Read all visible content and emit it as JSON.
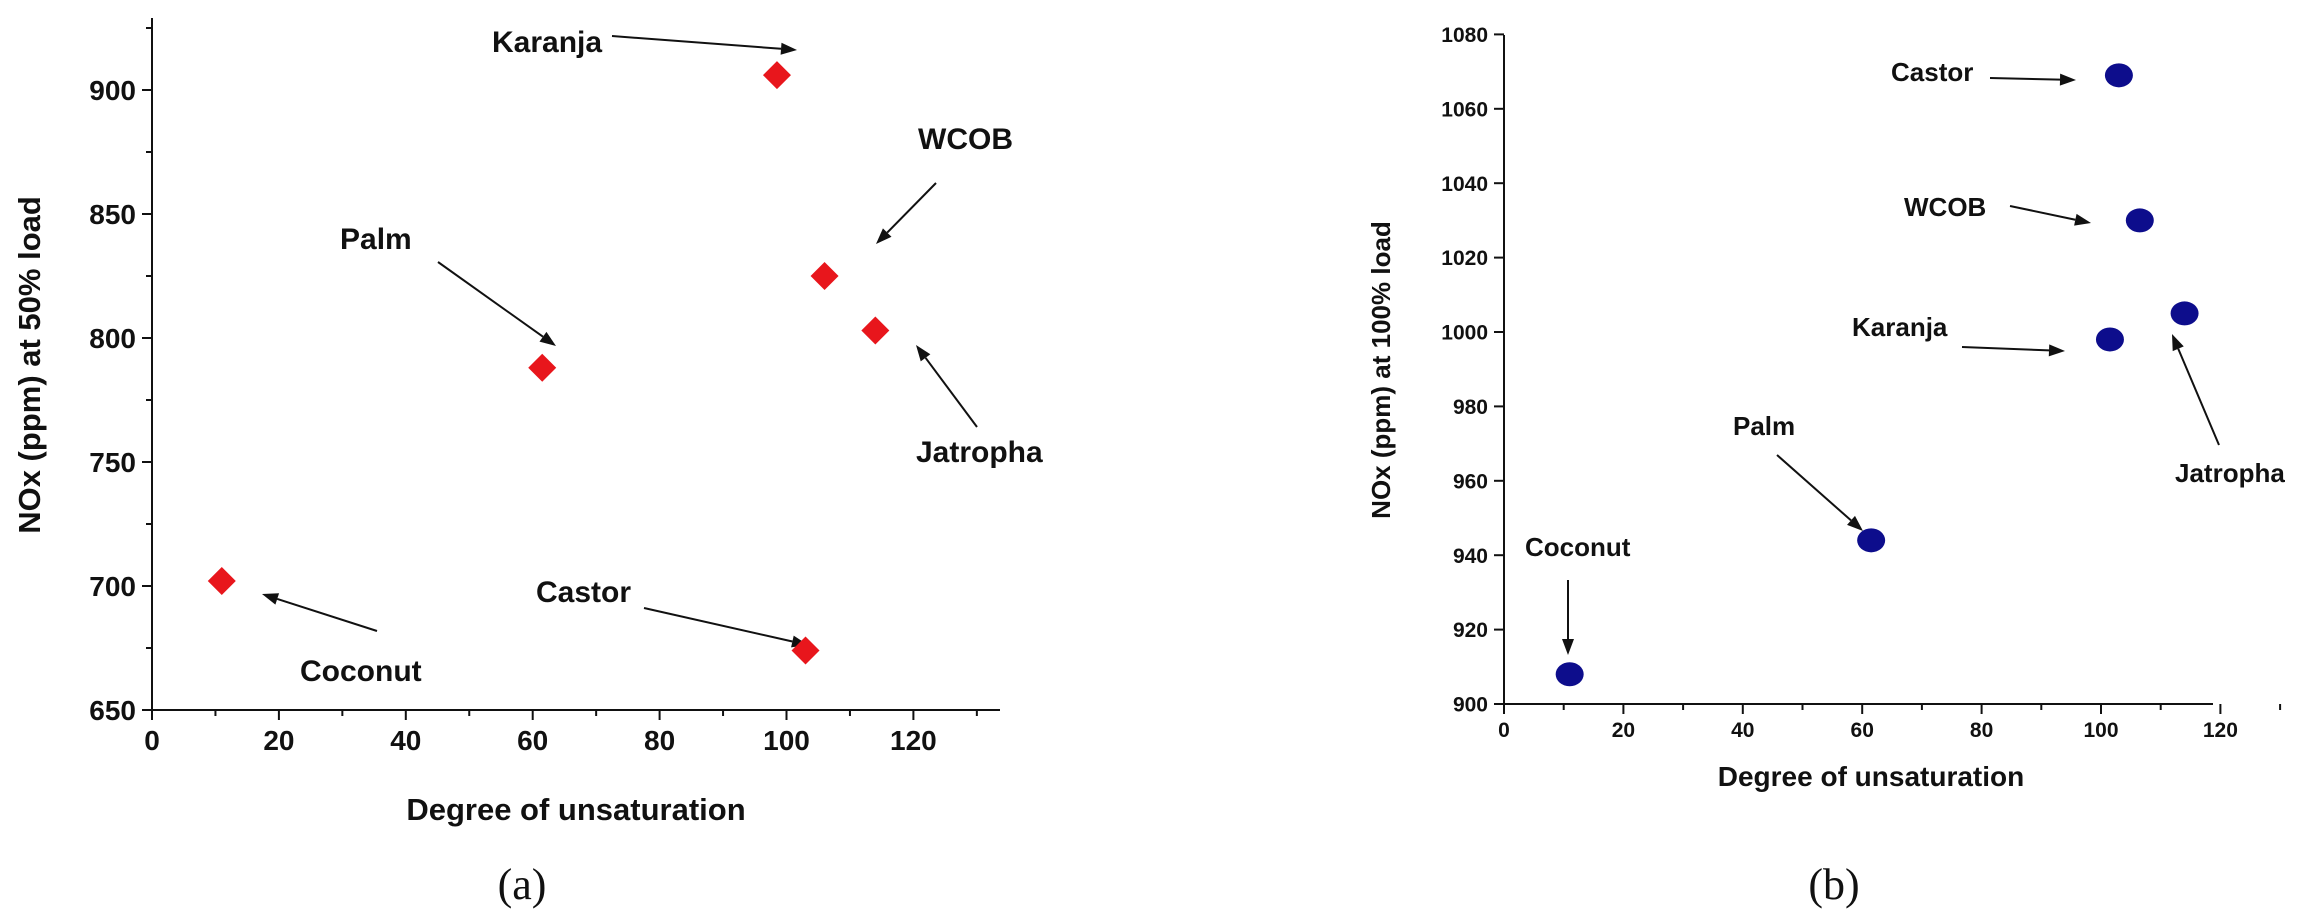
{
  "chart_data": [
    {
      "type": "scatter",
      "panel_label": "(a)",
      "xlabel": "Degree of unsaturation",
      "ylabel": "NOx (ppm) at 50% load",
      "xlim": [
        0,
        130
      ],
      "ylim": [
        650,
        925
      ],
      "xticks": [
        0,
        20,
        40,
        60,
        80,
        100,
        120
      ],
      "yticks": [
        650,
        700,
        750,
        800,
        850,
        900
      ],
      "marker": "diamond",
      "marker_color": "#e8161c",
      "legend": "none",
      "points": [
        {
          "label": "Coconut",
          "x": 11,
          "y": 702
        },
        {
          "label": "Palm",
          "x": 61.5,
          "y": 788
        },
        {
          "label": "Karanja",
          "x": 98.5,
          "y": 906
        },
        {
          "label": "Castor",
          "x": 103,
          "y": 674
        },
        {
          "label": "WCOB",
          "x": 106,
          "y": 825
        },
        {
          "label": "Jatropha",
          "x": 114,
          "y": 803
        }
      ]
    },
    {
      "type": "scatter",
      "panel_label": "(b)",
      "xlabel": "Degree of unsaturation",
      "ylabel": "NOx (ppm) at 100% load",
      "xlim": [
        0,
        130
      ],
      "ylim": [
        900,
        1080
      ],
      "xticks": [
        0,
        20,
        40,
        60,
        80,
        100,
        120
      ],
      "yticks": [
        900,
        920,
        940,
        960,
        980,
        1000,
        1020,
        1040,
        1060,
        1080
      ],
      "marker": "circle",
      "marker_color": "#0d0d8c",
      "legend": "none",
      "points": [
        {
          "label": "Coconut",
          "x": 11,
          "y": 908
        },
        {
          "label": "Palm",
          "x": 61.5,
          "y": 944
        },
        {
          "label": "Karanja",
          "x": 101.5,
          "y": 998
        },
        {
          "label": "Castor",
          "x": 103,
          "y": 1069
        },
        {
          "label": "WCOB",
          "x": 106.5,
          "y": 1030
        },
        {
          "label": "Jatropha",
          "x": 114,
          "y": 1005
        }
      ]
    }
  ]
}
